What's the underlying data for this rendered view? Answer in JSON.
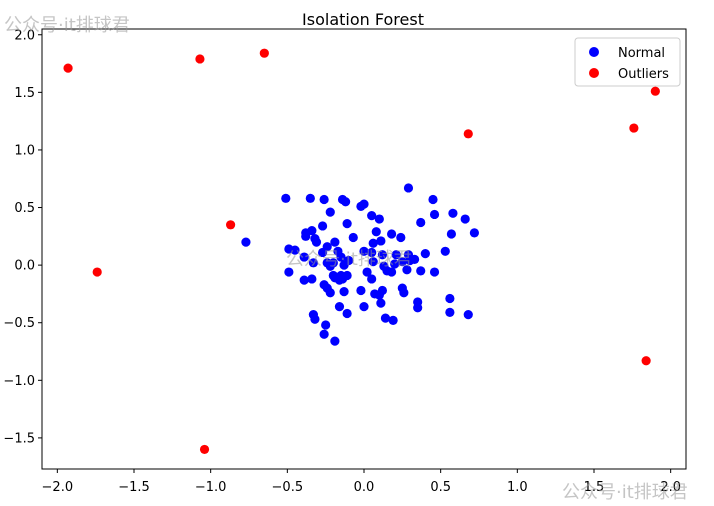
{
  "chart_data": {
    "type": "scatter",
    "title": "Isolation Forest",
    "xlabel": "",
    "ylabel": "",
    "xlim": [
      -2.1,
      2.1
    ],
    "ylim": [
      -1.77,
      2.05
    ],
    "xticks": [
      -2.0,
      -1.5,
      -1.0,
      -0.5,
      0.0,
      0.5,
      1.0,
      1.5,
      2.0
    ],
    "xtick_labels": [
      "−2.0",
      "−1.5",
      "−1.0",
      "−0.5",
      "0.0",
      "0.5",
      "1.0",
      "1.5",
      "2.0"
    ],
    "yticks": [
      -1.5,
      -1.0,
      -0.5,
      0.0,
      0.5,
      1.0,
      1.5,
      2.0
    ],
    "ytick_labels": [
      "−1.5",
      "−1.0",
      "−0.5",
      "0.0",
      "0.5",
      "1.0",
      "1.5",
      "2.0"
    ],
    "grid": false,
    "legend": {
      "position": "top-right"
    },
    "series": [
      {
        "name": "Normal",
        "color": "#0000ff",
        "points": [
          [
            -0.51,
            0.58
          ],
          [
            -0.35,
            0.58
          ],
          [
            -0.26,
            0.57
          ],
          [
            -0.14,
            0.57
          ],
          [
            -0.12,
            0.55
          ],
          [
            -0.02,
            0.51
          ],
          [
            0.0,
            0.53
          ],
          [
            0.29,
            0.67
          ],
          [
            0.45,
            0.57
          ],
          [
            0.58,
            0.45
          ],
          [
            -0.22,
            0.46
          ],
          [
            0.05,
            0.43
          ],
          [
            0.1,
            0.4
          ],
          [
            0.46,
            0.44
          ],
          [
            0.66,
            0.4
          ],
          [
            0.37,
            0.37
          ],
          [
            -0.11,
            0.36
          ],
          [
            -0.34,
            0.3
          ],
          [
            -0.27,
            0.34
          ],
          [
            -0.38,
            0.28
          ],
          [
            -0.32,
            0.23
          ],
          [
            0.08,
            0.29
          ],
          [
            0.18,
            0.27
          ],
          [
            0.72,
            0.28
          ],
          [
            0.57,
            0.27
          ],
          [
            0.24,
            0.24
          ],
          [
            -0.38,
            0.25
          ],
          [
            -0.07,
            0.24
          ],
          [
            -0.19,
            0.2
          ],
          [
            -0.24,
            0.16
          ],
          [
            -0.31,
            0.2
          ],
          [
            0.06,
            0.19
          ],
          [
            0.11,
            0.21
          ],
          [
            -0.77,
            0.2
          ],
          [
            -0.49,
            0.14
          ],
          [
            -0.45,
            0.13
          ],
          [
            -0.27,
            0.11
          ],
          [
            -0.17,
            0.12
          ],
          [
            -0.15,
            0.07
          ],
          [
            0.0,
            0.12
          ],
          [
            0.05,
            0.11
          ],
          [
            0.12,
            0.09
          ],
          [
            0.21,
            0.09
          ],
          [
            0.29,
            0.09
          ],
          [
            0.4,
            0.1
          ],
          [
            0.53,
            0.12
          ],
          [
            -0.39,
            0.07
          ],
          [
            -0.24,
            0.02
          ],
          [
            -0.33,
            0.02
          ],
          [
            -0.22,
            -0.01
          ],
          [
            -0.2,
            0.02
          ],
          [
            -0.1,
            0.04
          ],
          [
            -0.13,
            0.0
          ],
          [
            0.06,
            0.03
          ],
          [
            0.13,
            -0.01
          ],
          [
            0.2,
            0.01
          ],
          [
            0.25,
            0.03
          ],
          [
            0.3,
            0.04
          ],
          [
            0.33,
            0.05
          ],
          [
            -0.49,
            -0.06
          ],
          [
            -0.2,
            -0.09
          ],
          [
            -0.15,
            -0.09
          ],
          [
            -0.11,
            -0.09
          ],
          [
            0.02,
            -0.06
          ],
          [
            0.15,
            -0.05
          ],
          [
            0.18,
            -0.06
          ],
          [
            0.28,
            -0.04
          ],
          [
            0.37,
            -0.05
          ],
          [
            0.46,
            -0.06
          ],
          [
            -0.39,
            -0.13
          ],
          [
            -0.34,
            -0.12
          ],
          [
            -0.19,
            -0.11
          ],
          [
            -0.16,
            -0.13
          ],
          [
            -0.14,
            -0.12
          ],
          [
            0.05,
            -0.12
          ],
          [
            -0.26,
            -0.17
          ],
          [
            -0.24,
            -0.2
          ],
          [
            -0.22,
            -0.24
          ],
          [
            -0.13,
            -0.23
          ],
          [
            -0.02,
            -0.22
          ],
          [
            0.1,
            -0.26
          ],
          [
            0.12,
            -0.22
          ],
          [
            0.25,
            -0.2
          ],
          [
            0.26,
            -0.24
          ],
          [
            0.35,
            -0.32
          ],
          [
            0.35,
            -0.37
          ],
          [
            0.11,
            -0.33
          ],
          [
            0.07,
            -0.25
          ],
          [
            -0.16,
            -0.36
          ],
          [
            -0.11,
            -0.42
          ],
          [
            0.0,
            -0.36
          ],
          [
            0.14,
            -0.46
          ],
          [
            0.19,
            -0.48
          ],
          [
            0.56,
            -0.29
          ],
          [
            0.56,
            -0.41
          ],
          [
            0.68,
            -0.43
          ],
          [
            -0.33,
            -0.43
          ],
          [
            -0.32,
            -0.47
          ],
          [
            -0.25,
            -0.52
          ],
          [
            -0.26,
            -0.6
          ],
          [
            -0.19,
            -0.66
          ]
        ]
      },
      {
        "name": "Outliers",
        "color": "#ff0000",
        "points": [
          [
            -1.93,
            1.71
          ],
          [
            -1.07,
            1.79
          ],
          [
            -0.65,
            1.84
          ],
          [
            0.68,
            1.14
          ],
          [
            1.76,
            1.19
          ],
          [
            1.9,
            1.51
          ],
          [
            -0.87,
            0.35
          ],
          [
            -1.74,
            -0.06
          ],
          [
            1.84,
            -0.83
          ],
          [
            -1.04,
            -1.6
          ]
        ]
      }
    ]
  },
  "watermarks": [
    "公众号·it排球君",
    "公众号·it排球君",
    "公众号·it排球君"
  ]
}
